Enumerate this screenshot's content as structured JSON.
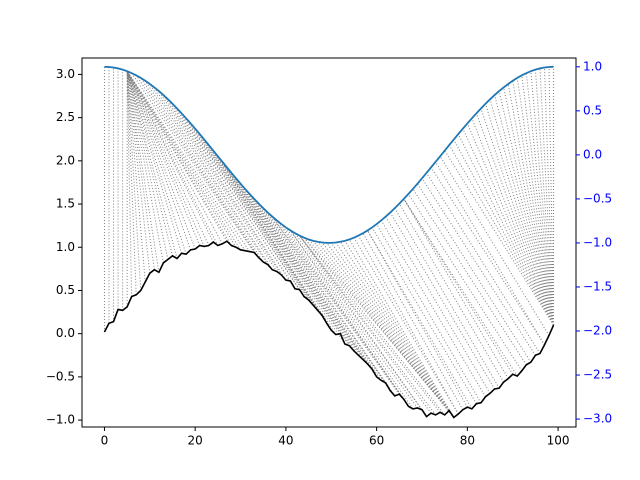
{
  "chart_data": {
    "type": "line",
    "x": [
      0,
      1,
      2,
      3,
      4,
      5,
      6,
      7,
      8,
      9,
      10,
      11,
      12,
      13,
      14,
      15,
      16,
      17,
      18,
      19,
      20,
      21,
      22,
      23,
      24,
      25,
      26,
      27,
      28,
      29,
      30,
      31,
      32,
      33,
      34,
      35,
      36,
      37,
      38,
      39,
      40,
      41,
      42,
      43,
      44,
      45,
      46,
      47,
      48,
      49,
      50,
      51,
      52,
      53,
      54,
      55,
      56,
      57,
      58,
      59,
      60,
      61,
      62,
      63,
      64,
      65,
      66,
      67,
      68,
      69,
      70,
      71,
      72,
      73,
      74,
      75,
      76,
      77,
      78,
      79,
      80,
      81,
      82,
      83,
      84,
      85,
      86,
      87,
      88,
      89,
      90,
      91,
      92,
      93,
      94,
      95,
      96,
      97,
      98,
      99
    ],
    "series": [
      {
        "color": "black",
        "values": [
          0.02,
          0.12,
          0.14,
          0.28,
          0.27,
          0.31,
          0.43,
          0.45,
          0.5,
          0.6,
          0.7,
          0.74,
          0.71,
          0.82,
          0.86,
          0.9,
          0.87,
          0.93,
          0.92,
          0.97,
          0.98,
          1.02,
          1.01,
          1.02,
          1.06,
          1.02,
          1.04,
          1.07,
          1.02,
          1.0,
          0.97,
          0.96,
          0.95,
          0.94,
          0.88,
          0.83,
          0.8,
          0.74,
          0.72,
          0.68,
          0.62,
          0.61,
          0.52,
          0.51,
          0.43,
          0.39,
          0.33,
          0.27,
          0.21,
          0.12,
          0.04,
          -0.01,
          0.0,
          -0.12,
          -0.14,
          -0.2,
          -0.25,
          -0.3,
          -0.35,
          -0.41,
          -0.5,
          -0.54,
          -0.57,
          -0.66,
          -0.72,
          -0.7,
          -0.76,
          -0.84,
          -0.87,
          -0.86,
          -0.88,
          -0.96,
          -0.92,
          -0.94,
          -0.91,
          -0.94,
          -0.89,
          -0.97,
          -0.93,
          -0.88,
          -0.85,
          -0.87,
          -0.81,
          -0.8,
          -0.73,
          -0.69,
          -0.64,
          -0.63,
          -0.56,
          -0.52,
          -0.47,
          -0.49,
          -0.43,
          -0.36,
          -0.33,
          -0.25,
          -0.23,
          -0.13,
          -0.02,
          0.1
        ]
      },
      {
        "color": "#1f77b4",
        "axis": "y2",
        "values": [
          1.0,
          0.998,
          0.992,
          0.982,
          0.968,
          0.95,
          0.928,
          0.903,
          0.874,
          0.841,
          0.805,
          0.766,
          0.724,
          0.679,
          0.631,
          0.58,
          0.527,
          0.472,
          0.415,
          0.357,
          0.297,
          0.236,
          0.174,
          0.111,
          0.048,
          -0.016,
          -0.079,
          -0.142,
          -0.205,
          -0.266,
          -0.327,
          -0.387,
          -0.444,
          -0.5,
          -0.554,
          -0.605,
          -0.655,
          -0.701,
          -0.745,
          -0.786,
          -0.824,
          -0.858,
          -0.889,
          -0.916,
          -0.94,
          -0.96,
          -0.976,
          -0.987,
          -0.995,
          -0.999,
          -0.999,
          -0.995,
          -0.987,
          -0.976,
          -0.96,
          -0.94,
          -0.916,
          -0.889,
          -0.858,
          -0.824,
          -0.786,
          -0.745,
          -0.701,
          -0.655,
          -0.605,
          -0.554,
          -0.5,
          -0.444,
          -0.387,
          -0.327,
          -0.266,
          -0.205,
          -0.142,
          -0.079,
          -0.016,
          0.048,
          0.111,
          0.174,
          0.236,
          0.297,
          0.357,
          0.415,
          0.472,
          0.527,
          0.58,
          0.631,
          0.679,
          0.724,
          0.766,
          0.805,
          0.841,
          0.874,
          0.903,
          0.928,
          0.95,
          0.968,
          0.982,
          0.992,
          0.998,
          1.0
        ]
      }
    ],
    "xlim": [
      -4.95,
      103.95
    ],
    "xticks": [
      0,
      20,
      40,
      60,
      80,
      100
    ],
    "ylim": [
      -1.08,
      3.19
    ],
    "yticks": [
      {
        "value": -1,
        "label": "−1.0"
      },
      {
        "value": -0.5,
        "label": "−0.5"
      },
      {
        "value": 0,
        "label": "0.0"
      },
      0.5,
      {
        "value": 1,
        "label": "1.0"
      },
      1.5,
      {
        "value": 2,
        "label": "2.0"
      },
      2.5,
      {
        "value": 3,
        "label": "3.0"
      }
    ],
    "y2lim": [
      -3.09,
      1.1
    ],
    "y2ticks": [
      {
        "value": -3,
        "label": "−3.0"
      },
      {
        "value": -2.5,
        "label": "−2.5"
      },
      {
        "value": -2,
        "label": "−2.0"
      },
      {
        "value": -1.5,
        "label": "−1.5"
      },
      {
        "value": -1,
        "label": "−1.0"
      },
      {
        "value": -0.5,
        "label": "−0.5"
      },
      {
        "value": 0,
        "label": "0.0"
      },
      0.5,
      {
        "value": 1,
        "label": "1.0"
      }
    ],
    "y2_tick_color": "blue",
    "alignment_lines": true,
    "grid": false
  }
}
